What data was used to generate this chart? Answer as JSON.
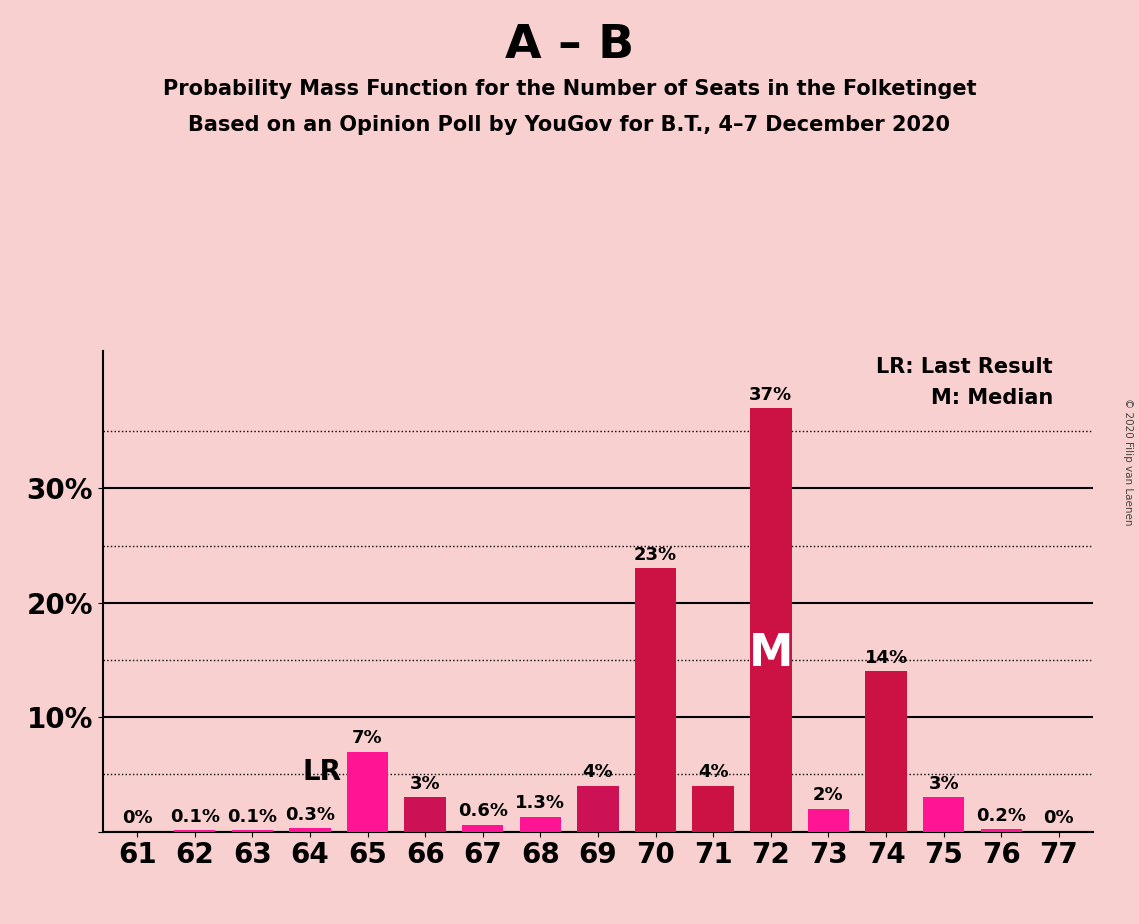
{
  "title_main": "A – B",
  "subtitle1": "Probability Mass Function for the Number of Seats in the Folketinget",
  "subtitle2": "Based on an Opinion Poll by YouGov for B.T., 4–7 December 2020",
  "copyright": "© 2020 Filip van Laenen",
  "categories": [
    61,
    62,
    63,
    64,
    65,
    66,
    67,
    68,
    69,
    70,
    71,
    72,
    73,
    74,
    75,
    76,
    77
  ],
  "values": [
    0.0,
    0.1,
    0.1,
    0.3,
    7.0,
    3.0,
    0.6,
    1.3,
    4.0,
    23.0,
    4.0,
    37.0,
    2.0,
    14.0,
    3.0,
    0.2,
    0.0
  ],
  "bar_colors": [
    "#FF1493",
    "#FF1493",
    "#FF1493",
    "#FF1493",
    "#FF1493",
    "#CC1155",
    "#FF1493",
    "#FF1493",
    "#CC1155",
    "#CC1144",
    "#CC1144",
    "#CC1144",
    "#FF1493",
    "#CC1144",
    "#FF1493",
    "#FF1493",
    "#FF1493"
  ],
  "labels": [
    "0%",
    "0.1%",
    "0.1%",
    "0.3%",
    "7%",
    "3%",
    "0.6%",
    "1.3%",
    "4%",
    "23%",
    "4%",
    "37%",
    "2%",
    "14%",
    "3%",
    "0.2%",
    "0%"
  ],
  "background_color": "#F9D0D0",
  "ylim_max": 42,
  "solid_lines": [
    0,
    10,
    20,
    30
  ],
  "dotted_lines": [
    5,
    15,
    25,
    35
  ],
  "lr_index": 3,
  "median_index": 11,
  "lr_label": "LR",
  "median_label": "M",
  "legend_text1": "LR: Last Result",
  "legend_text2": "M: Median",
  "title_fontsize": 34,
  "subtitle_fontsize": 15,
  "label_fontsize": 13,
  "axis_tick_fontsize": 20,
  "ytick_labels": [
    "",
    "10%",
    "20%",
    "30%"
  ],
  "bar_width": 0.72
}
